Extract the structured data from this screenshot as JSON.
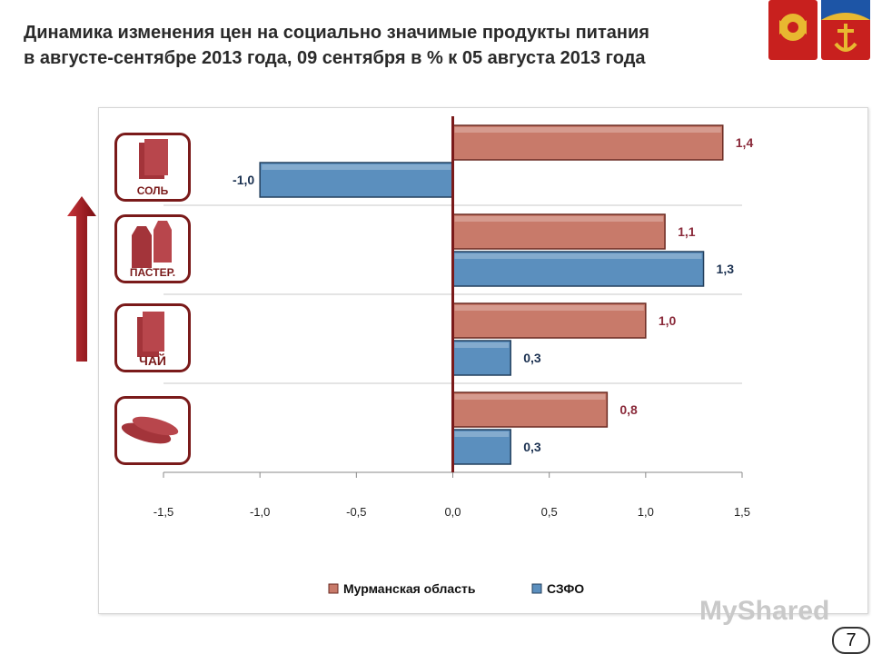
{
  "title": {
    "line1": "Динамика изменения цен на социально значимые продукты питания",
    "line2": "в августе-сентябре 2013 года, 09 сентября в % к 05 августа 2013 года"
  },
  "page_number": "7",
  "watermark": "MyShared",
  "icons": [
    {
      "label": "СОЛЬ",
      "icon": "salt-package-icon"
    },
    {
      "label": "ПАСТЕР.",
      "icon": "milk-cartons-icon"
    },
    {
      "label": "ЧАЙ",
      "icon": "tea-box-icon"
    },
    {
      "label": "",
      "icon": "bread-loaves-icon"
    }
  ],
  "colors": {
    "murmansk": "#c87a6a",
    "szfo": "#5b8fbe",
    "axis_zero": "#7a1a1a",
    "arrow": "#a0141a"
  },
  "chart_data": {
    "type": "bar",
    "orientation": "horizontal",
    "categories": [
      "Соль",
      "Пастер.",
      "Чай",
      "Хлеб"
    ],
    "series": [
      {
        "name": "Мурманская область",
        "values": [
          1.4,
          1.1,
          1.0,
          0.8
        ],
        "labels": [
          "1,4",
          "1,1",
          "1,0",
          "0,8"
        ]
      },
      {
        "name": "СЗФО",
        "values": [
          -1.0,
          1.3,
          0.3,
          0.3
        ],
        "labels": [
          "-1,0",
          "1,3",
          "0,3",
          "0,3"
        ]
      }
    ],
    "xlim": [
      -1.5,
      1.5
    ],
    "xticks": [
      "-1,5",
      "-1,0",
      "-0,5",
      "0,0",
      "0,5",
      "1,0",
      "1,5"
    ],
    "grid": "horizontal",
    "legend": "bottom"
  }
}
